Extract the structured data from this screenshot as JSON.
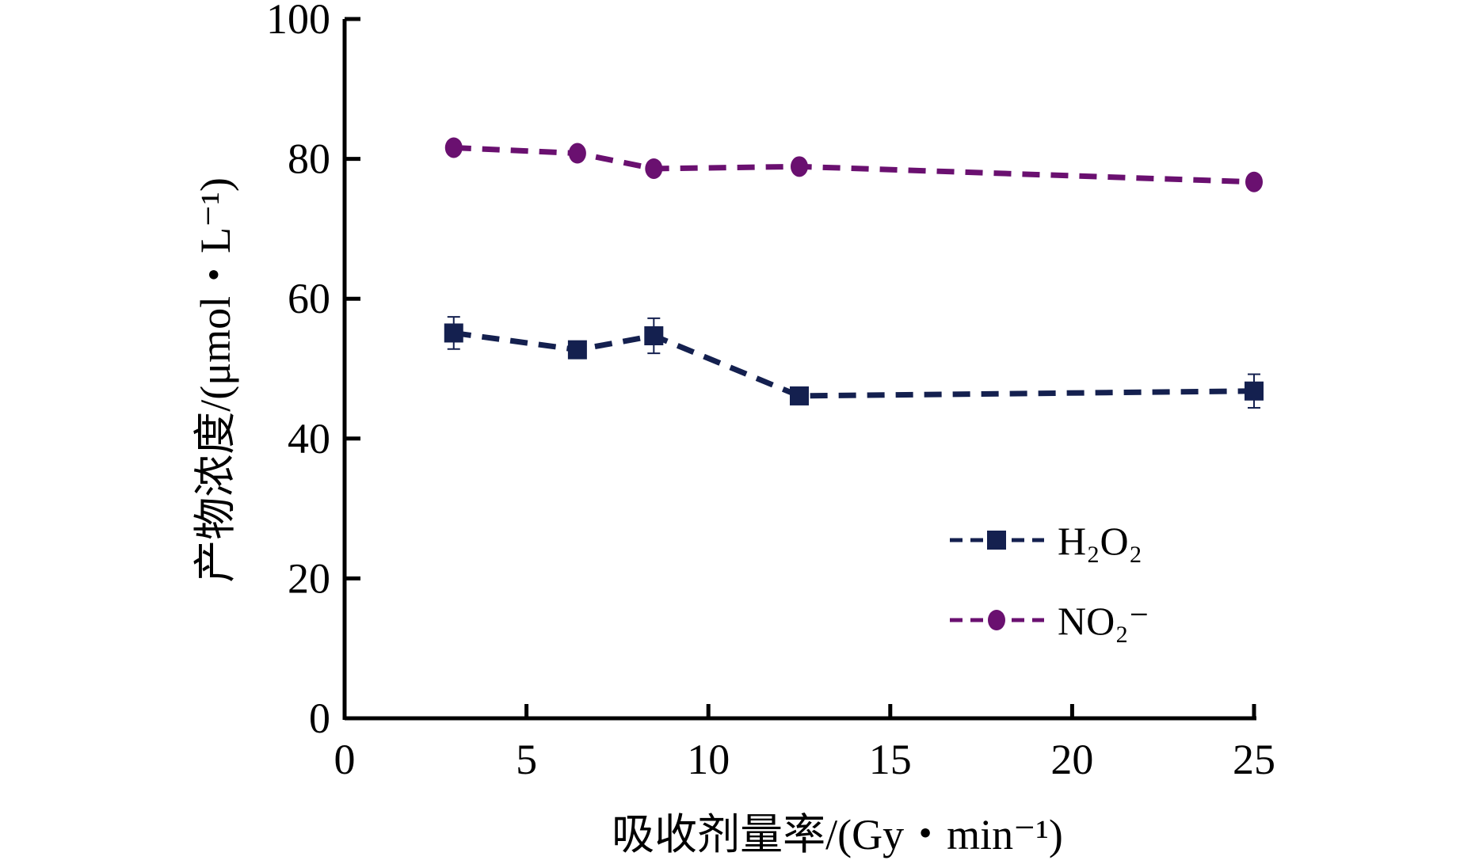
{
  "chart_data": {
    "type": "line",
    "title": "",
    "xlabel": "吸收剂量率/(Gy・min⁻¹)",
    "ylabel": "产物浓度/(μmol・L⁻¹)",
    "xlim": [
      0,
      25
    ],
    "ylim": [
      0,
      100
    ],
    "xticks": [
      "0",
      "5",
      "10",
      "15",
      "20",
      "25"
    ],
    "yticks": [
      "0",
      "20",
      "40",
      "60",
      "80",
      "100"
    ],
    "grid": false,
    "legend_placement": "bottom-right",
    "series": [
      {
        "name": "H₂O₂",
        "color": "#14204f",
        "marker": "square",
        "x": [
          3.0,
          6.4,
          8.5,
          12.5,
          25.0
        ],
        "y": [
          55.1,
          52.7,
          54.7,
          46.1,
          46.8
        ],
        "error": [
          2.3,
          0.6,
          2.5,
          0.5,
          2.4
        ]
      },
      {
        "name": "NO₂⁻",
        "color": "#6a1070",
        "marker": "circle",
        "x": [
          3.0,
          6.4,
          8.5,
          12.5,
          25.0
        ],
        "y": [
          81.6,
          80.8,
          78.6,
          78.9,
          76.7
        ],
        "error": [
          0,
          0,
          0,
          0,
          0
        ]
      }
    ]
  }
}
